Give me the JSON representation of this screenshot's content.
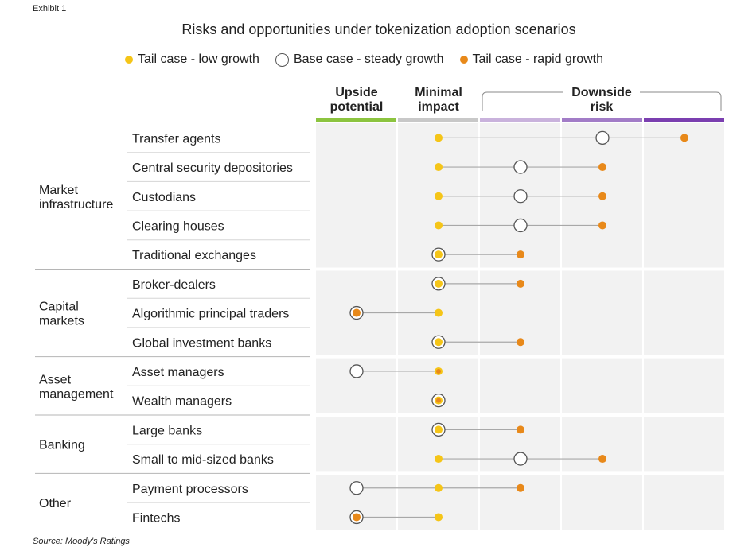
{
  "exhibit_label": "Exhibit 1",
  "source": "Source: Moody's Ratings",
  "chart_data": {
    "type": "scatter",
    "title": "Risks and opportunities under tokenization adoption scenarios",
    "legend": [
      {
        "key": "low",
        "label": "Tail case - low growth",
        "color": "#f5c518"
      },
      {
        "key": "base",
        "label": "Base case - steady growth",
        "color": "#ffffff"
      },
      {
        "key": "rapid",
        "label": "Tail case - rapid growth",
        "color": "#e8891a"
      }
    ],
    "legend_position": "top",
    "zones": [
      {
        "label": "Upside potential",
        "lines": [
          "Upside",
          "potential"
        ],
        "color": "#8cc43f"
      },
      {
        "label": "Minimal impact",
        "lines": [
          "Minimal",
          "impact"
        ],
        "color": "#c8c8c8"
      },
      {
        "label": "Downside risk",
        "lines": [
          "Downside",
          "risk"
        ],
        "colors": [
          "#c9b2dc",
          "#a27cc7",
          "#7b3fb0"
        ]
      }
    ],
    "scale_note": "x scale: 0 = upside potential, 1 = minimal impact, 2-4 = downside risk (increasing)",
    "groups": [
      {
        "label": "Market infrastructure",
        "lines": [
          "Market",
          "infrastructure"
        ],
        "rows": [
          0,
          4
        ]
      },
      {
        "label": "Capital markets",
        "lines": [
          "Capital",
          "markets"
        ],
        "rows": [
          5,
          7
        ]
      },
      {
        "label": "Asset management",
        "lines": [
          "Asset",
          "management"
        ],
        "rows": [
          8,
          9
        ]
      },
      {
        "label": "Banking",
        "lines": [
          "Banking"
        ],
        "rows": [
          10,
          11
        ]
      },
      {
        "label": "Other",
        "lines": [
          "Other"
        ],
        "rows": [
          12,
          13
        ]
      }
    ],
    "categories": [
      "Transfer agents",
      "Central security depositories",
      "Custodians",
      "Clearing houses",
      "Traditional exchanges",
      "Broker-dealers",
      "Algorithmic principal traders",
      "Global investment banks",
      "Asset managers",
      "Wealth managers",
      "Large banks",
      "Small to mid-sized banks",
      "Payment processors",
      "Fintechs"
    ],
    "series": [
      {
        "name": "Tail case - low growth",
        "key": "low",
        "values": [
          1,
          1,
          1,
          1,
          1,
          1,
          1,
          1,
          1,
          1,
          1,
          1,
          1,
          1
        ]
      },
      {
        "name": "Base case - steady growth",
        "key": "base",
        "values": [
          3,
          2,
          2,
          2,
          1,
          1,
          0,
          1,
          0,
          1,
          1,
          2,
          0,
          0
        ]
      },
      {
        "name": "Tail case - rapid growth",
        "key": "rapid",
        "values": [
          4,
          3,
          3,
          3,
          2,
          2,
          0,
          2,
          1,
          1,
          2,
          3,
          2,
          0
        ]
      }
    ]
  }
}
